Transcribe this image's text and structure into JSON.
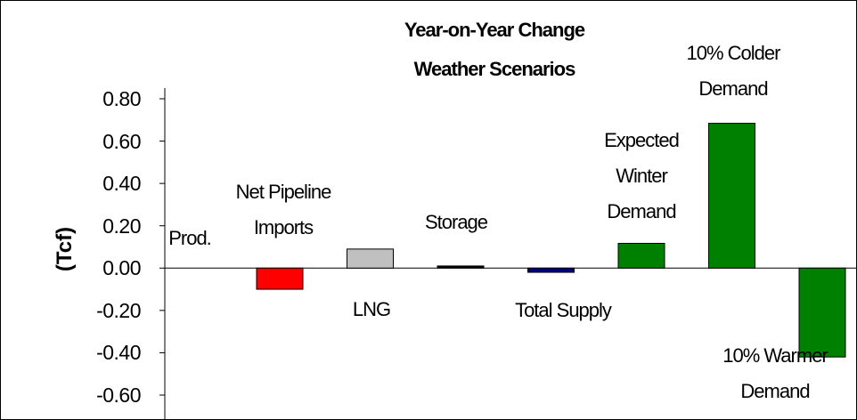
{
  "chart_data": {
    "type": "bar",
    "title": "Year-on-Year Change Weather Scenarios",
    "ylabel": "(Tcf)",
    "categories": [
      "Prod.",
      "Net Pipeline Imports",
      "LNG",
      "Storage",
      "Total Supply",
      "Expected Winter Demand",
      "10% Colder Demand",
      "10% Warmer Demand"
    ],
    "values": [
      0,
      -0.1,
      0.09,
      0.01,
      -0.02,
      0.117,
      0.684,
      -0.42
    ],
    "colors": [
      "#008000",
      "#ff0000",
      "#c0c0c0",
      "#000000",
      "#000080",
      "#008000",
      "#008000",
      "#008000"
    ],
    "ylim": [
      -0.6,
      0.8
    ],
    "yticks": [
      {
        "value": 0.8,
        "label": "0.80"
      },
      {
        "value": 0.6,
        "label": "0.60"
      },
      {
        "value": 0.4,
        "label": "0.40"
      },
      {
        "value": 0.2,
        "label": "0.20"
      },
      {
        "value": 0,
        "label": "0.00"
      },
      {
        "value": -0.2,
        "label": "-0.20"
      },
      {
        "value": -0.4,
        "label": "-0.40"
      },
      {
        "value": -0.6,
        "label": "-0.60"
      }
    ]
  }
}
